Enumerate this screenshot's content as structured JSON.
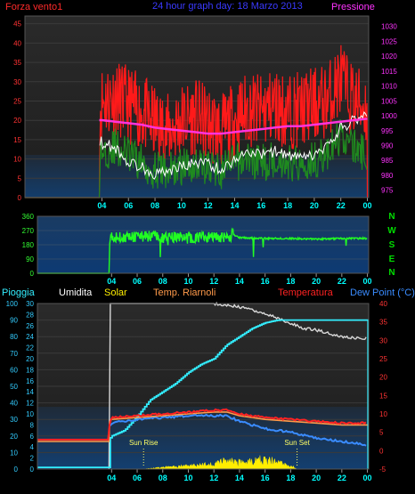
{
  "colors": {
    "wind_title": "#ff2a2a",
    "graph_title": "#3a3aff",
    "pressure_title": "#ff33ff",
    "pressure_axis": "#ff33ff",
    "wind_axis": "#ff3333",
    "gust": "#ff1a1a",
    "avg_wind": "#1f8a1f",
    "white_line": "#ffffff",
    "pressure_line": "#ff33dd",
    "direction_line": "#22ff22",
    "direction_axis": "#33ff33",
    "compass": "#00dd00",
    "rain": "#33eeff",
    "humidity": "#d8d8d8",
    "solar": "#ffee00",
    "temp_riarnoli": "#ff9a4a",
    "temperature": "#ff2222",
    "dew_point": "#3a8cff",
    "rain_axis": "#33ccff",
    "temp_axis": "#ff3333",
    "x_axis": "#00ffff",
    "annotation": "#ffff66"
  },
  "chart_data": [
    {
      "type": "line",
      "title": "24 hour graph day: 18 Marzo 2013",
      "left_label": "Forza vento1",
      "right_label": "Pressione",
      "left_axis": {
        "ticks": [
          0,
          5,
          10,
          15,
          20,
          25,
          30,
          35,
          40,
          45
        ],
        "ylim": [
          0,
          47
        ]
      },
      "right_axis": {
        "ticks": [
          975,
          980,
          985,
          990,
          995,
          1000,
          1005,
          1010,
          1015,
          1020,
          1025,
          1030
        ],
        "ylim": [
          972.5,
          1033.5
        ]
      },
      "x_ticks": [
        "04",
        "06",
        "08",
        "10",
        "12",
        "14",
        "16",
        "18",
        "20",
        "22",
        "00"
      ],
      "x_positions": [
        4,
        6,
        8,
        10,
        12,
        14,
        16,
        18,
        20,
        22,
        24
      ],
      "xlim": [
        -1.8,
        24.1
      ],
      "series": [
        {
          "key": "gust",
          "x": [
            -1.8,
            3.8,
            3.85,
            4,
            5,
            6,
            7,
            8,
            9,
            10,
            11,
            12,
            13,
            14,
            15,
            16,
            17,
            18,
            19,
            20,
            21,
            22,
            22.5,
            23,
            24
          ],
          "values": [
            0,
            0,
            25,
            27,
            28,
            26,
            24,
            21,
            19,
            22,
            23,
            21,
            19,
            22,
            25,
            24,
            26,
            24,
            25,
            26,
            27,
            33,
            29,
            27,
            25
          ]
        },
        {
          "key": "avg_wind",
          "x": [
            -1.8,
            3.8,
            3.85,
            4,
            5,
            6,
            7,
            8,
            9,
            10,
            11,
            12,
            13,
            14,
            15,
            16,
            17,
            18,
            19,
            20,
            21,
            22,
            23,
            24
          ],
          "values": [
            0,
            0,
            12,
            13,
            14,
            12,
            10,
            8,
            8,
            9,
            10,
            9,
            8,
            10,
            11,
            10,
            11,
            10,
            10,
            11,
            12,
            17,
            14,
            12
          ]
        },
        {
          "key": "white_line",
          "x": [
            3.85,
            4,
            5,
            6,
            7,
            8,
            9,
            10,
            11,
            12,
            13,
            14,
            15,
            16,
            17,
            18,
            19,
            20,
            21,
            22,
            23,
            24
          ],
          "values": [
            15,
            14,
            13,
            9,
            8,
            6,
            7,
            8,
            9,
            9,
            7,
            10,
            12,
            11,
            12,
            11,
            10,
            11,
            13,
            18,
            20,
            22
          ]
        },
        {
          "key": "pressure",
          "axis": "right",
          "x": [
            3.8,
            4,
            5,
            6,
            7,
            8,
            9,
            10,
            11,
            12,
            13,
            14,
            15,
            16,
            17,
            18,
            19,
            20,
            21,
            22,
            23,
            24
          ],
          "values": [
            998.5,
            998.5,
            998,
            997.5,
            997,
            996,
            995.5,
            995,
            994.5,
            994,
            994,
            994.5,
            995,
            995.5,
            996,
            996.5,
            996.5,
            997,
            997.5,
            998,
            998.5,
            999
          ]
        }
      ]
    },
    {
      "type": "line",
      "left_axis": {
        "ticks": [
          0,
          90,
          180,
          270,
          360
        ],
        "ylim": [
          0,
          360
        ]
      },
      "compass_labels": [
        "N",
        "W",
        "S",
        "E",
        "N"
      ],
      "x_ticks": [
        "04",
        "06",
        "08",
        "10",
        "12",
        "14",
        "16",
        "18",
        "20",
        "22",
        "00"
      ],
      "x_positions": [
        4,
        6,
        8,
        10,
        12,
        14,
        16,
        18,
        20,
        22,
        24
      ],
      "xlim": [
        -1.8,
        24.1
      ],
      "series": [
        {
          "key": "direction",
          "x": [
            -1.8,
            3.8,
            3.85,
            4,
            5,
            6,
            7,
            8,
            9,
            10,
            11,
            12,
            13,
            13.5,
            14,
            16,
            18,
            20,
            22,
            24
          ],
          "values": [
            0,
            0,
            220,
            230,
            225,
            230,
            235,
            225,
            230,
            220,
            225,
            230,
            225,
            245,
            225,
            220,
            220,
            215,
            220,
            220
          ]
        }
      ]
    },
    {
      "type": "line",
      "legend": [
        "Pioggia",
        "Umidita",
        "Solar",
        "Temp. Riarnoli",
        "Temperatura",
        "Dew Point (°C)"
      ],
      "left_axis": {
        "ticks": [
          0,
          10,
          20,
          30,
          40,
          50,
          60,
          70,
          80,
          90,
          100
        ],
        "ylim": [
          0,
          100
        ]
      },
      "rain_axis": {
        "ticks": [
          0,
          2,
          4,
          6,
          8,
          10,
          12,
          14,
          16,
          18,
          20,
          22,
          24,
          26,
          28,
          30
        ],
        "ylim": [
          0,
          30
        ]
      },
      "right_axis": {
        "ticks": [
          -5,
          0,
          5,
          10,
          15,
          20,
          25,
          30,
          35,
          40
        ],
        "ylim": [
          -5,
          40
        ]
      },
      "x_ticks": [
        "04",
        "06",
        "08",
        "10",
        "12",
        "14",
        "16",
        "18",
        "20",
        "22",
        "00"
      ],
      "x_positions": [
        4,
        6,
        8,
        10,
        12,
        14,
        16,
        18,
        20,
        22,
        24
      ],
      "xlim": [
        -1.8,
        24.1
      ],
      "annotations": [
        {
          "label": "Sun Rise",
          "x": 6.5
        },
        {
          "label": "Sun Set",
          "x": 18.5
        }
      ],
      "series": [
        {
          "key": "humidity",
          "axis": "left",
          "x": [
            3.8,
            3.85,
            12,
            13,
            14,
            15,
            16,
            17,
            18,
            19,
            20,
            21,
            22,
            23,
            24
          ],
          "values": [
            0,
            100,
            100,
            99,
            98,
            96,
            94,
            91,
            88,
            85,
            84,
            82,
            80,
            79,
            79
          ]
        },
        {
          "key": "rain",
          "axis": "rain",
          "x": [
            -1.8,
            3.8,
            3.85,
            4,
            5,
            6,
            7,
            8,
            9,
            10,
            11,
            12,
            13,
            14,
            15,
            16,
            17,
            18,
            19,
            20,
            21,
            22,
            23,
            24,
            24.05
          ],
          "values": [
            0.3,
            0.3,
            5.5,
            6.0,
            7.0,
            9.5,
            12.5,
            14.0,
            15.5,
            17.5,
            19.0,
            20.0,
            22.5,
            24.0,
            25.5,
            26.5,
            27.0,
            27.0,
            27.0,
            27.0,
            27.0,
            27.0,
            27.0,
            27.0,
            0
          ]
        },
        {
          "key": "temp_riarnoli",
          "axis": "right",
          "x": [
            -1.8,
            3.8,
            3.85,
            4,
            6,
            8,
            10,
            12,
            13,
            14,
            15,
            16,
            18,
            20,
            22,
            24
          ],
          "values": [
            2.5,
            2.5,
            8,
            8.5,
            9,
            9.5,
            10,
            10.5,
            10.5,
            9.5,
            9,
            8.5,
            8,
            7.5,
            7,
            7
          ]
        },
        {
          "key": "temperature",
          "axis": "right",
          "x": [
            -1.8,
            3.8,
            3.85,
            4,
            6,
            8,
            10,
            12,
            13,
            14,
            15,
            16,
            18,
            20,
            22,
            24
          ],
          "values": [
            3,
            3,
            8,
            9,
            9.5,
            10,
            10.5,
            11,
            11,
            10,
            9.5,
            9,
            8.5,
            8,
            7.5,
            7.5
          ]
        },
        {
          "key": "dew_point",
          "axis": "right",
          "x": [
            3.85,
            4,
            6,
            8,
            10,
            12,
            13,
            14,
            15,
            16,
            18,
            20,
            22,
            24
          ],
          "values": [
            7,
            7.5,
            8.5,
            9,
            9.5,
            9.5,
            9.5,
            8,
            7,
            6,
            5,
            3.5,
            2.5,
            1.5
          ]
        },
        {
          "key": "solar",
          "axis": "left",
          "x": [
            6.5,
            8,
            10,
            12,
            13,
            14,
            15,
            16,
            17,
            18,
            18.5
          ],
          "values": [
            0,
            1,
            2,
            3,
            5,
            4,
            5,
            6,
            4,
            2,
            0
          ]
        }
      ]
    }
  ]
}
